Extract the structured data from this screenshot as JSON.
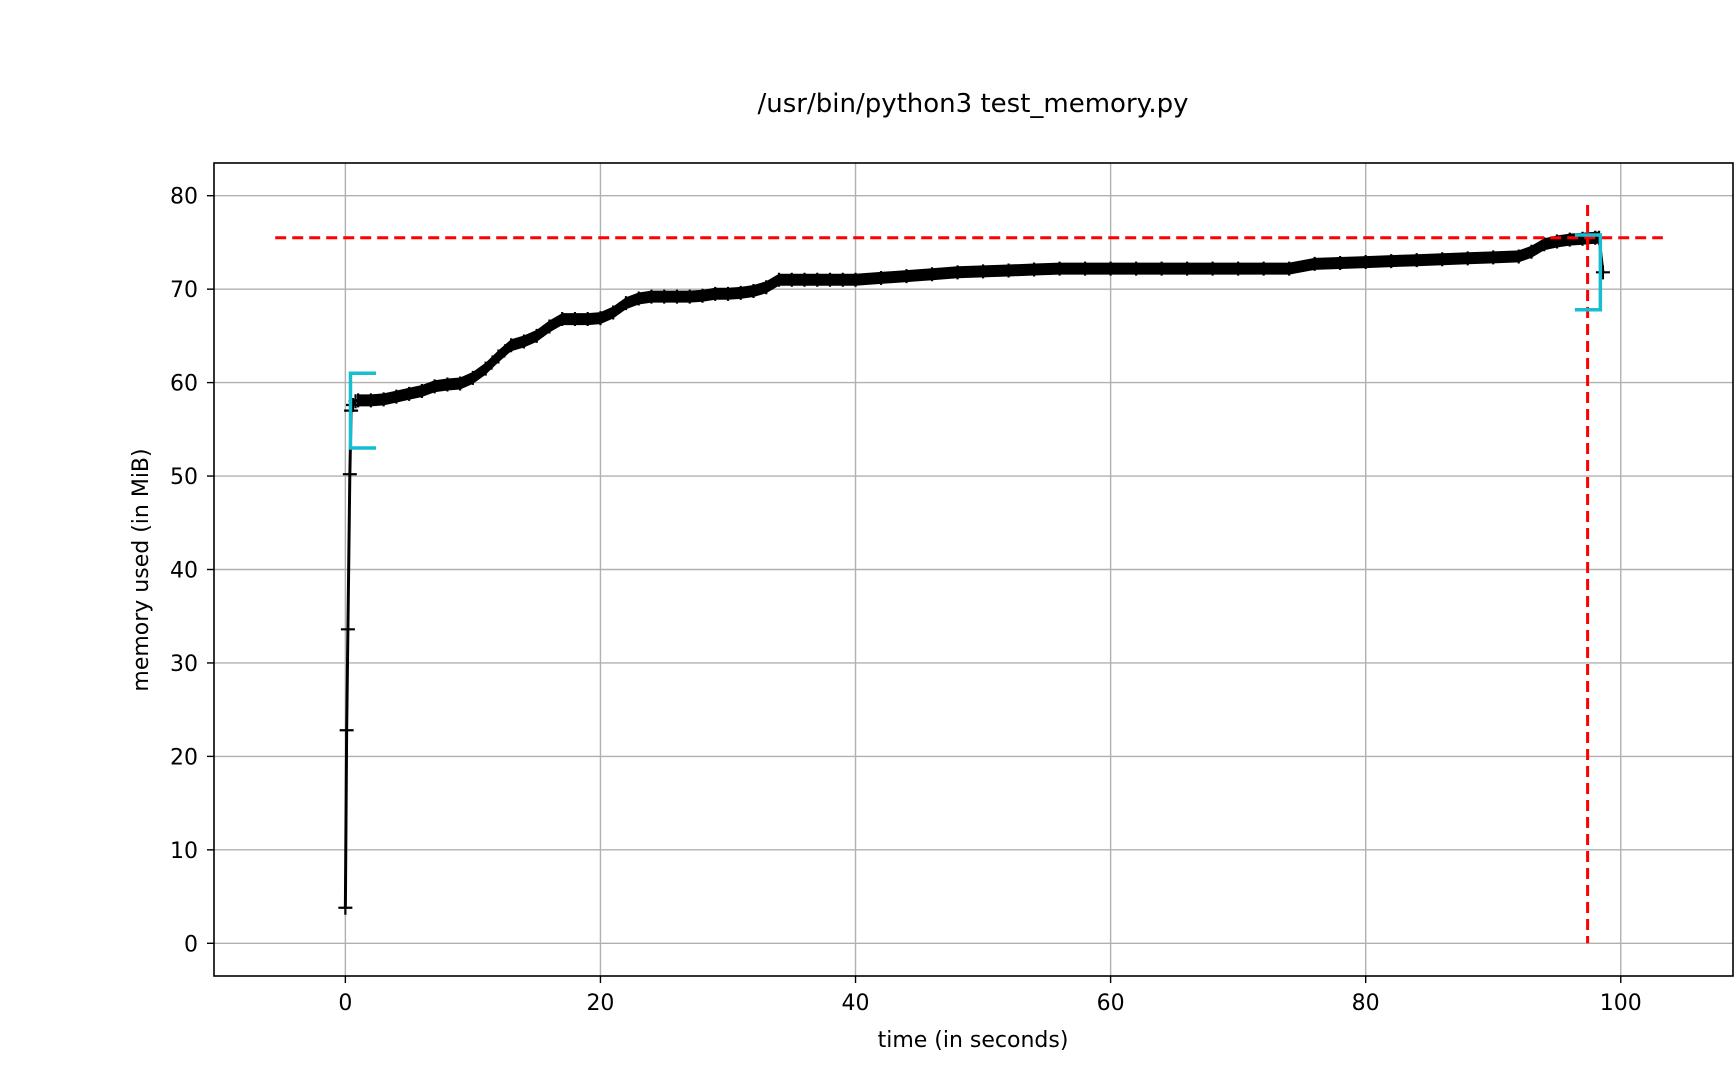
{
  "chart_data": {
    "type": "line",
    "title": "/usr/bin/python3 test_memory.py",
    "xlabel": "time (in seconds)",
    "ylabel": "memory used (in MiB)",
    "xlim": [
      -10.3,
      108.8
    ],
    "ylim": [
      -3.5,
      83.5
    ],
    "xticks": [
      0,
      20,
      40,
      60,
      80,
      100
    ],
    "yticks": [
      0,
      10,
      20,
      30,
      40,
      50,
      60,
      70,
      80
    ],
    "grid": true,
    "colors": {
      "line": "#000000",
      "peak": "#ff0000",
      "bracket": "#17becf",
      "grid": "#b0b0b0"
    },
    "series": [
      {
        "name": "memory",
        "x": [
          0,
          0.1,
          0.2,
          0.35,
          0.45,
          0.6,
          0.8,
          1,
          2,
          3,
          4,
          5,
          6,
          7,
          8,
          9,
          10,
          11,
          12,
          13,
          14,
          15,
          16,
          17,
          18,
          19,
          20,
          21,
          22,
          23,
          24,
          25,
          26,
          27,
          28,
          29,
          30,
          31,
          32,
          33,
          34,
          35,
          36,
          37,
          38,
          39,
          40,
          42,
          44,
          46,
          48,
          50,
          52,
          54,
          56,
          58,
          60,
          62,
          64,
          66,
          68,
          70,
          72,
          74,
          76,
          78,
          80,
          82,
          84,
          86,
          88,
          90,
          92,
          93,
          94,
          95,
          96,
          97,
          98,
          98.3,
          98.6
        ],
        "values": [
          3.8,
          22.8,
          33.6,
          50.2,
          57.0,
          57.6,
          58.0,
          58.1,
          58.1,
          58.2,
          58.5,
          58.8,
          59.1,
          59.6,
          59.8,
          59.9,
          60.5,
          61.5,
          62.8,
          64.0,
          64.4,
          65.0,
          66.0,
          66.8,
          66.8,
          66.8,
          66.9,
          67.5,
          68.5,
          69.0,
          69.2,
          69.2,
          69.2,
          69.2,
          69.3,
          69.5,
          69.5,
          69.6,
          69.8,
          70.2,
          71.0,
          71.0,
          71.0,
          71.0,
          71.0,
          71.0,
          71.0,
          71.2,
          71.4,
          71.6,
          71.8,
          71.9,
          72.0,
          72.1,
          72.2,
          72.2,
          72.2,
          72.2,
          72.2,
          72.2,
          72.2,
          72.2,
          72.2,
          72.2,
          72.7,
          72.8,
          72.9,
          73.0,
          73.1,
          73.2,
          73.3,
          73.4,
          73.5,
          74.0,
          74.8,
          75.1,
          75.3,
          75.4,
          75.5,
          75.5,
          71.8
        ]
      }
    ],
    "annotations": {
      "peak_memory": 75.5,
      "peak_time": 97.4,
      "brackets": [
        {
          "side": "open",
          "start": 0.4,
          "end": 2.4,
          "ymin": 53.0,
          "ymax": 61.0
        },
        {
          "side": "close",
          "start": 96.4,
          "end": 98.4,
          "ymin": 67.8,
          "ymax": 75.8
        }
      ]
    }
  }
}
